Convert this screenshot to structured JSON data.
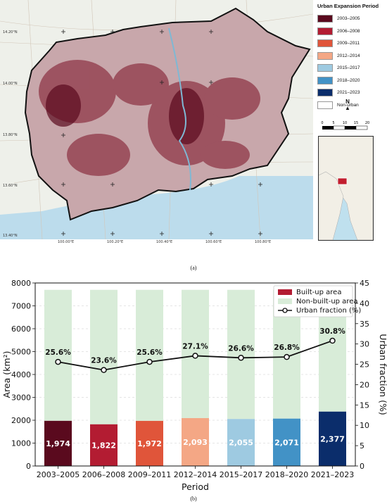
{
  "map_panel": {
    "legend_title": "Urban Expansion Period",
    "legend": [
      {
        "label": "2003–2005",
        "color": "#5a0a1e"
      },
      {
        "label": "2006–2008",
        "color": "#b31c32"
      },
      {
        "label": "2009–2011",
        "color": "#e0553a"
      },
      {
        "label": "2012–2014",
        "color": "#f4a785"
      },
      {
        "label": "2015–2017",
        "color": "#9ecae1"
      },
      {
        "label": "2018–2020",
        "color": "#4292c6"
      },
      {
        "label": "2021–2023",
        "color": "#0b2d6b"
      },
      {
        "label": "Non-urban",
        "color": "#ffffff"
      }
    ],
    "north_label": "N",
    "scale_ticks": [
      "0",
      "5",
      "10",
      "15",
      "20"
    ],
    "lat_labels": [
      "14.20°N",
      "14.00°N",
      "13.80°N",
      "13.60°N",
      "13.40°N"
    ],
    "lon_labels": [
      "100.00°E",
      "100.20°E",
      "100.40°E",
      "100.60°E",
      "100.80°E"
    ],
    "caption": "(a)"
  },
  "chart_caption": "(b)",
  "chart_data": {
    "type": "bar",
    "categories": [
      "2003–2005",
      "2006–2008",
      "2009–2011",
      "2012–2014",
      "2015–2017",
      "2018–2020",
      "2021–2023"
    ],
    "series": [
      {
        "name": "Built-up area",
        "values": [
          1974,
          1822,
          1972,
          2093,
          2055,
          2071,
          2377
        ],
        "colors": [
          "#5a0a1e",
          "#b31c32",
          "#e0553a",
          "#f4a785",
          "#9ecae1",
          "#4292c6",
          "#0b2d6b"
        ]
      },
      {
        "name": "Non-built-up area",
        "values": [
          5726,
          5878,
          5728,
          5607,
          5645,
          5629,
          5323
        ],
        "color": "#d8ecd8"
      },
      {
        "name": "Urban fraction (%)",
        "type": "line",
        "axis": "right",
        "values": [
          25.6,
          23.6,
          25.6,
          27.1,
          26.6,
          26.8,
          30.8
        ]
      }
    ],
    "bar_labels": [
      "1,974",
      "1,822",
      "1,972",
      "2,093",
      "2,055",
      "2,071",
      "2,377"
    ],
    "fraction_labels": [
      "25.6%",
      "23.6%",
      "25.6%",
      "27.1%",
      "26.6%",
      "26.8%",
      "30.8%"
    ],
    "xlabel": "Period",
    "ylabel": "Area (km²)",
    "y2label": "Urban fraction (%)",
    "ylim": [
      0,
      8000
    ],
    "y2lim": [
      0,
      45
    ],
    "yticks": [
      0,
      1000,
      2000,
      3000,
      4000,
      5000,
      6000,
      7000,
      8000
    ],
    "y2ticks": [
      0,
      5,
      10,
      15,
      20,
      25,
      30,
      35,
      40,
      45
    ],
    "grid": true,
    "legend_position": "top-right"
  }
}
